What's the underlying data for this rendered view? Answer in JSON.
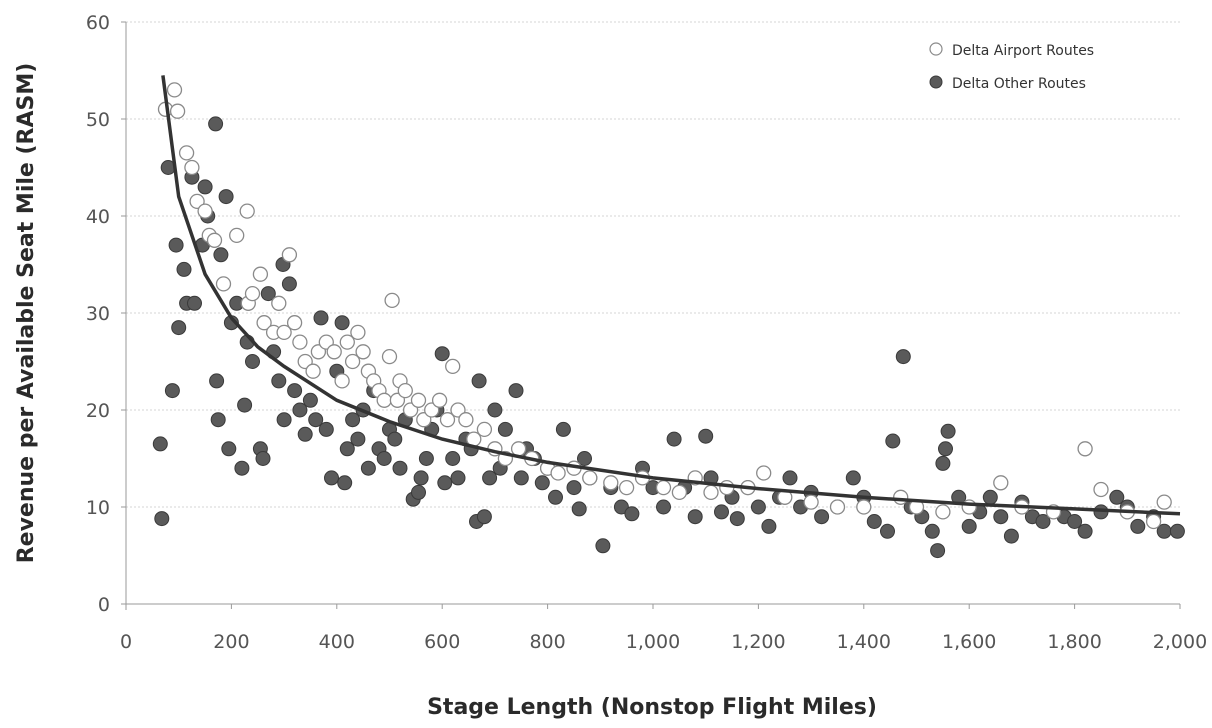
{
  "chart_data": {
    "type": "scatter",
    "title": "",
    "xlabel": "Stage Length (Nonstop Flight Miles)",
    "ylabel": "Revenue per Available Seat Mile (RASM)",
    "xlim": [
      0,
      2000
    ],
    "ylim": [
      0,
      60
    ],
    "x_ticks": [
      0,
      200,
      400,
      600,
      800,
      1000,
      1200,
      1400,
      1600,
      1800,
      2000
    ],
    "x_tick_labels": [
      "0",
      "200",
      "400",
      "600",
      "800",
      "1,000",
      "1,200",
      "1,400",
      "1,600",
      "1,800",
      "2,000"
    ],
    "y_ticks": [
      0,
      10,
      20,
      30,
      40,
      50,
      60
    ],
    "y_tick_labels": [
      "0",
      "10",
      "20",
      "30",
      "40",
      "50",
      "60"
    ],
    "grid": "horizontal",
    "legend_position": "top-right",
    "trendline": {
      "type": "power",
      "x": [
        70,
        100,
        150,
        200,
        250,
        300,
        400,
        500,
        600,
        700,
        800,
        1000,
        1200,
        1400,
        1600,
        1800,
        2000
      ],
      "y": [
        54.5,
        42.0,
        34.0,
        29.5,
        26.5,
        24.5,
        21.0,
        18.8,
        17.0,
        15.7,
        14.6,
        13.0,
        11.9,
        11.0,
        10.3,
        9.8,
        9.3
      ],
      "color": "#333333"
    },
    "series": [
      {
        "name": "Delta Airport Routes",
        "marker": "open-circle",
        "color": "#ffffff",
        "stroke": "#8a8a8a",
        "points": [
          [
            75,
            51
          ],
          [
            92,
            53
          ],
          [
            98,
            50.8
          ],
          [
            115,
            46.5
          ],
          [
            125,
            45
          ],
          [
            135,
            41.5
          ],
          [
            150,
            40.5
          ],
          [
            158,
            38
          ],
          [
            168,
            37.5
          ],
          [
            185,
            33
          ],
          [
            210,
            38
          ],
          [
            230,
            40.5
          ],
          [
            232,
            31
          ],
          [
            240,
            32
          ],
          [
            255,
            34
          ],
          [
            262,
            29
          ],
          [
            280,
            28
          ],
          [
            290,
            31
          ],
          [
            300,
            28
          ],
          [
            310,
            36
          ],
          [
            320,
            29
          ],
          [
            330,
            27
          ],
          [
            340,
            25
          ],
          [
            355,
            24
          ],
          [
            365,
            26
          ],
          [
            380,
            27
          ],
          [
            395,
            26
          ],
          [
            410,
            23
          ],
          [
            420,
            27
          ],
          [
            430,
            25
          ],
          [
            440,
            28
          ],
          [
            450,
            26
          ],
          [
            460,
            24
          ],
          [
            470,
            23
          ],
          [
            480,
            22
          ],
          [
            490,
            21
          ],
          [
            500,
            25.5
          ],
          [
            505,
            31.3
          ],
          [
            515,
            21
          ],
          [
            520,
            23
          ],
          [
            530,
            22
          ],
          [
            540,
            20
          ],
          [
            555,
            21
          ],
          [
            565,
            19
          ],
          [
            580,
            20
          ],
          [
            595,
            21
          ],
          [
            610,
            19
          ],
          [
            620,
            24.5
          ],
          [
            630,
            20
          ],
          [
            645,
            19
          ],
          [
            660,
            17
          ],
          [
            680,
            18
          ],
          [
            700,
            16
          ],
          [
            720,
            15
          ],
          [
            745,
            16
          ],
          [
            770,
            15
          ],
          [
            800,
            14
          ],
          [
            820,
            13.5
          ],
          [
            850,
            14
          ],
          [
            880,
            13
          ],
          [
            920,
            12.5
          ],
          [
            950,
            12
          ],
          [
            980,
            13
          ],
          [
            1020,
            12
          ],
          [
            1050,
            11.5
          ],
          [
            1080,
            13
          ],
          [
            1110,
            11.5
          ],
          [
            1140,
            12
          ],
          [
            1180,
            12
          ],
          [
            1210,
            13.5
          ],
          [
            1250,
            11
          ],
          [
            1300,
            10.5
          ],
          [
            1350,
            10
          ],
          [
            1400,
            10
          ],
          [
            1470,
            11
          ],
          [
            1500,
            10
          ],
          [
            1550,
            9.5
          ],
          [
            1600,
            10
          ],
          [
            1660,
            12.5
          ],
          [
            1700,
            10
          ],
          [
            1760,
            9.5
          ],
          [
            1820,
            16
          ],
          [
            1850,
            11.8
          ],
          [
            1900,
            9.5
          ],
          [
            1950,
            8.5
          ],
          [
            1970,
            10.5
          ]
        ]
      },
      {
        "name": "Delta Other Routes",
        "marker": "filled-circle",
        "color": "#5a5a5a",
        "stroke": "#3a3a3a",
        "points": [
          [
            65,
            16.5
          ],
          [
            68,
            8.8
          ],
          [
            80,
            45
          ],
          [
            88,
            22
          ],
          [
            95,
            37
          ],
          [
            100,
            28.5
          ],
          [
            110,
            34.5
          ],
          [
            115,
            31
          ],
          [
            125,
            44
          ],
          [
            130,
            31
          ],
          [
            145,
            37
          ],
          [
            150,
            43
          ],
          [
            155,
            40
          ],
          [
            170,
            49.5
          ],
          [
            172,
            23
          ],
          [
            175,
            19
          ],
          [
            180,
            36
          ],
          [
            190,
            42
          ],
          [
            195,
            16
          ],
          [
            200,
            29
          ],
          [
            210,
            31
          ],
          [
            220,
            14
          ],
          [
            225,
            20.5
          ],
          [
            230,
            27
          ],
          [
            240,
            25
          ],
          [
            255,
            16
          ],
          [
            260,
            15
          ],
          [
            270,
            32
          ],
          [
            280,
            26
          ],
          [
            290,
            23
          ],
          [
            298,
            35
          ],
          [
            300,
            19
          ],
          [
            310,
            33
          ],
          [
            320,
            22
          ],
          [
            330,
            20
          ],
          [
            340,
            17.5
          ],
          [
            350,
            21
          ],
          [
            360,
            19
          ],
          [
            370,
            29.5
          ],
          [
            380,
            18
          ],
          [
            390,
            13
          ],
          [
            400,
            24
          ],
          [
            410,
            29
          ],
          [
            415,
            12.5
          ],
          [
            420,
            16
          ],
          [
            430,
            19
          ],
          [
            440,
            17
          ],
          [
            450,
            20
          ],
          [
            460,
            14
          ],
          [
            470,
            22
          ],
          [
            480,
            16
          ],
          [
            490,
            15
          ],
          [
            500,
            18
          ],
          [
            510,
            17
          ],
          [
            520,
            14
          ],
          [
            530,
            19
          ],
          [
            545,
            10.8
          ],
          [
            555,
            11.5
          ],
          [
            560,
            13
          ],
          [
            570,
            15
          ],
          [
            580,
            18
          ],
          [
            590,
            20
          ],
          [
            600,
            25.8
          ],
          [
            605,
            12.5
          ],
          [
            620,
            15
          ],
          [
            630,
            13
          ],
          [
            645,
            17
          ],
          [
            655,
            16
          ],
          [
            665,
            8.5
          ],
          [
            670,
            23
          ],
          [
            680,
            9
          ],
          [
            690,
            13
          ],
          [
            700,
            20
          ],
          [
            710,
            14
          ],
          [
            720,
            18
          ],
          [
            740,
            22
          ],
          [
            750,
            13
          ],
          [
            760,
            16
          ],
          [
            775,
            15
          ],
          [
            790,
            12.5
          ],
          [
            800,
            14
          ],
          [
            815,
            11
          ],
          [
            830,
            18
          ],
          [
            850,
            12
          ],
          [
            860,
            9.8
          ],
          [
            870,
            15
          ],
          [
            880,
            13
          ],
          [
            905,
            6
          ],
          [
            920,
            12
          ],
          [
            940,
            10
          ],
          [
            960,
            9.3
          ],
          [
            980,
            14
          ],
          [
            1000,
            12
          ],
          [
            1020,
            10
          ],
          [
            1040,
            17
          ],
          [
            1060,
            12
          ],
          [
            1080,
            9
          ],
          [
            1100,
            17.3
          ],
          [
            1110,
            13
          ],
          [
            1130,
            9.5
          ],
          [
            1150,
            11
          ],
          [
            1160,
            8.8
          ],
          [
            1180,
            12
          ],
          [
            1200,
            10
          ],
          [
            1220,
            8
          ],
          [
            1240,
            11
          ],
          [
            1260,
            13
          ],
          [
            1280,
            10
          ],
          [
            1300,
            11.5
          ],
          [
            1320,
            9
          ],
          [
            1350,
            10
          ],
          [
            1380,
            13
          ],
          [
            1400,
            11
          ],
          [
            1420,
            8.5
          ],
          [
            1445,
            7.5
          ],
          [
            1455,
            16.8
          ],
          [
            1475,
            25.5
          ],
          [
            1490,
            10
          ],
          [
            1510,
            9
          ],
          [
            1530,
            7.5
          ],
          [
            1540,
            5.5
          ],
          [
            1550,
            14.5
          ],
          [
            1555,
            16
          ],
          [
            1560,
            17.8
          ],
          [
            1580,
            11
          ],
          [
            1600,
            8
          ],
          [
            1620,
            9.5
          ],
          [
            1640,
            11
          ],
          [
            1660,
            9
          ],
          [
            1680,
            7
          ],
          [
            1700,
            10.5
          ],
          [
            1720,
            9
          ],
          [
            1740,
            8.5
          ],
          [
            1780,
            9
          ],
          [
            1800,
            8.5
          ],
          [
            1820,
            7.5
          ],
          [
            1850,
            9.5
          ],
          [
            1880,
            11
          ],
          [
            1900,
            10
          ],
          [
            1920,
            8
          ],
          [
            1950,
            9
          ],
          [
            1970,
            7.5
          ],
          [
            1995,
            7.5
          ]
        ]
      }
    ]
  }
}
